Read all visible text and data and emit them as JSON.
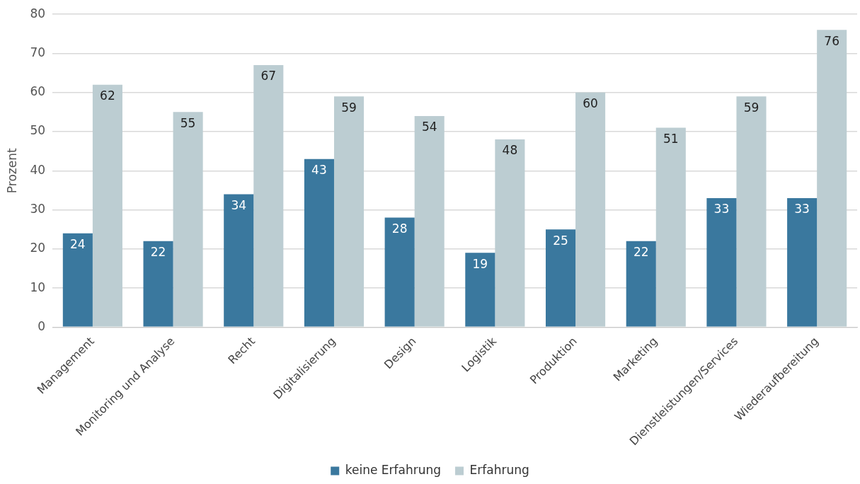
{
  "chart_data": {
    "type": "bar",
    "ylabel": "Prozent",
    "categories": [
      "Management",
      "Monitoring und Analyse",
      "Recht",
      "Digitalisierung",
      "Design",
      "Logistik",
      "Produktion",
      "Marketing",
      "Dienstleistungen/Services",
      "Wiederaufbereitung"
    ],
    "series": [
      {
        "name": "keine Erfahrung",
        "color": "#3a789e",
        "values": [
          24,
          22,
          34,
          43,
          28,
          19,
          25,
          22,
          33,
          33
        ]
      },
      {
        "name": "Erfahrung",
        "color": "#bccdd2",
        "values": [
          62,
          55,
          67,
          59,
          54,
          48,
          60,
          51,
          59,
          76
        ]
      }
    ],
    "ylim": [
      0,
      80
    ],
    "yticks": [
      0,
      10,
      20,
      30,
      40,
      50,
      60,
      70,
      80
    ],
    "grid": "y",
    "legend": "bottom",
    "data_labels": true
  }
}
